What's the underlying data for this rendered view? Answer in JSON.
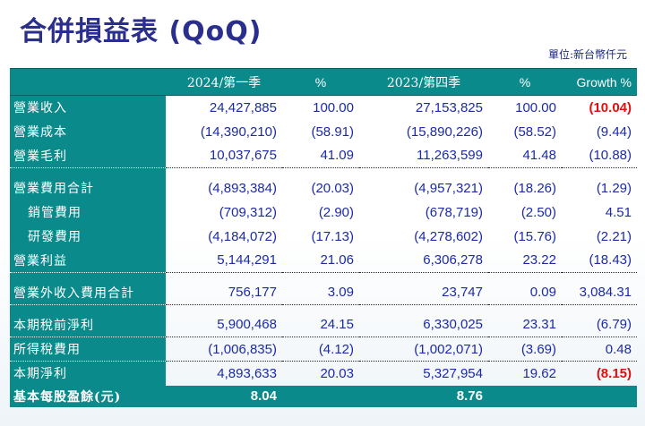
{
  "title": "合併損益表 (QoQ)",
  "unit_note": "單位:新台幣仟元",
  "columns": [
    "",
    "2024/第一季",
    "%",
    "2023/第四季",
    "%",
    "Growth %"
  ],
  "rows": [
    {
      "label": "營業收入",
      "q1": "24,427,885",
      "q1p": "100.00",
      "q4": "27,153,825",
      "q4p": "100.00",
      "growth": "(10.04)"
    },
    {
      "label": "營業成本",
      "q1": "(14,390,210)",
      "q1p": "(58.91)",
      "q4": "(15,890,226)",
      "q4p": "(58.52)",
      "growth": "(9.44)"
    },
    {
      "label": "營業毛利",
      "q1": "10,037,675",
      "q1p": "41.09",
      "q4": "11,263,599",
      "q4p": "41.48",
      "growth": "(10.88)"
    },
    {
      "label": "營業費用合計",
      "q1": "(4,893,384)",
      "q1p": "(20.03)",
      "q4": "(4,957,321)",
      "q4p": "(18.26)",
      "growth": "(1.29)"
    },
    {
      "label": "銷管費用",
      "q1": "(709,312)",
      "q1p": "(2.90)",
      "q4": "(678,719)",
      "q4p": "(2.50)",
      "growth": "4.51"
    },
    {
      "label": "研發費用",
      "q1": "(4,184,072)",
      "q1p": "(17.13)",
      "q4": "(4,278,602)",
      "q4p": "(15.76)",
      "growth": "(2.21)"
    },
    {
      "label": "營業利益",
      "q1": "5,144,291",
      "q1p": "21.06",
      "q4": "6,306,278",
      "q4p": "23.22",
      "growth": "(18.43)"
    },
    {
      "label": "營業外收入費用合計",
      "q1": "756,177",
      "q1p": "3.09",
      "q4": "23,747",
      "q4p": "0.09",
      "growth": "3,084.31"
    },
    {
      "label": "本期稅前淨利",
      "q1": "5,900,468",
      "q1p": "24.15",
      "q4": "6,330,025",
      "q4p": "23.31",
      "growth": "(6.79)"
    },
    {
      "label": "所得稅費用",
      "q1": "(1,006,835)",
      "q1p": "(4.12)",
      "q4": "(1,002,071)",
      "q4p": "(3.69)",
      "growth": "0.48"
    },
    {
      "label": "本期淨利",
      "q1": "4,893,633",
      "q1p": "20.03",
      "q4": "5,327,954",
      "q4p": "19.62",
      "growth": "(8.15)"
    },
    {
      "label": "基本每股盈餘(元)",
      "q1": "8.04",
      "q1p": "",
      "q4": "8.76",
      "q4p": "",
      "growth": ""
    }
  ],
  "colors": {
    "header_bg": "#0a8a8a",
    "value_text": "#1c2aa8",
    "highlight": "#e01010",
    "title": "#2a2e8c"
  }
}
